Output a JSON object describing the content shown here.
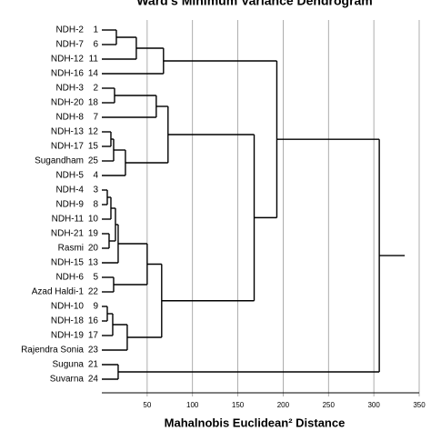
{
  "chart_data": {
    "type": "dendrogram",
    "title": "Ward's Minimum Variance Dendrogram",
    "x_label": "Mahalnobis Euclidean² Distance",
    "xlim": [
      0,
      350
    ],
    "xticks": [
      50,
      100,
      150,
      200,
      250,
      300,
      350
    ],
    "grid": true,
    "leaves": [
      {
        "label": "NDH-2",
        "number": 1
      },
      {
        "label": "NDH-7",
        "number": 6
      },
      {
        "label": "NDH-12",
        "number": 11
      },
      {
        "label": "NDH-16",
        "number": 14
      },
      {
        "label": "NDH-3",
        "number": 2
      },
      {
        "label": "NDH-20",
        "number": 18
      },
      {
        "label": "NDH-8",
        "number": 7
      },
      {
        "label": "NDH-13",
        "number": 12
      },
      {
        "label": "NDH-17",
        "number": 15
      },
      {
        "label": "Sugandham",
        "number": 25
      },
      {
        "label": "NDH-5",
        "number": 4
      },
      {
        "label": "NDH-4",
        "number": 3
      },
      {
        "label": "NDH-9",
        "number": 8
      },
      {
        "label": "NDH-11",
        "number": 10
      },
      {
        "label": "NDH-21",
        "number": 19
      },
      {
        "label": "Rasmi",
        "number": 20
      },
      {
        "label": "NDH-15",
        "number": 13
      },
      {
        "label": "NDH-6",
        "number": 5
      },
      {
        "label": "Azad Haldi-1",
        "number": 22
      },
      {
        "label": "NDH-10",
        "number": 9
      },
      {
        "label": "NDH-18",
        "number": 16
      },
      {
        "label": "NDH-19",
        "number": 17
      },
      {
        "label": "Rajendra Sonia",
        "number": 23
      },
      {
        "label": "Suguna",
        "number": 21
      },
      {
        "label": "Suvarna",
        "number": 24
      }
    ],
    "merges": [
      {
        "left": 0,
        "right": 1,
        "height": 16
      },
      {
        "left": 25,
        "right": 2,
        "height": 38
      },
      {
        "left": 26,
        "right": 3,
        "height": 68
      },
      {
        "left": 4,
        "right": 5,
        "height": 14
      },
      {
        "left": 28,
        "right": 6,
        "height": 60
      },
      {
        "left": 7,
        "right": 8,
        "height": 10
      },
      {
        "left": 30,
        "right": 9,
        "height": 13
      },
      {
        "left": 31,
        "right": 10,
        "height": 26
      },
      {
        "left": 29,
        "right": 32,
        "height": 73
      },
      {
        "left": 11,
        "right": 12,
        "height": 6
      },
      {
        "left": 34,
        "right": 13,
        "height": 10
      },
      {
        "left": 14,
        "right": 15,
        "height": 8
      },
      {
        "left": 35,
        "right": 36,
        "height": 15
      },
      {
        "left": 37,
        "right": 16,
        "height": 18
      },
      {
        "left": 17,
        "right": 18,
        "height": 13
      },
      {
        "left": 38,
        "right": 39,
        "height": 50
      },
      {
        "left": 19,
        "right": 20,
        "height": 6
      },
      {
        "left": 41,
        "right": 21,
        "height": 12
      },
      {
        "left": 42,
        "right": 22,
        "height": 28
      },
      {
        "left": 40,
        "right": 43,
        "height": 66
      },
      {
        "left": 33,
        "right": 44,
        "height": 168
      },
      {
        "left": 27,
        "right": 45,
        "height": 193
      },
      {
        "left": 23,
        "right": 24,
        "height": 18
      },
      {
        "left": 46,
        "right": 47,
        "height": 306
      }
    ]
  }
}
